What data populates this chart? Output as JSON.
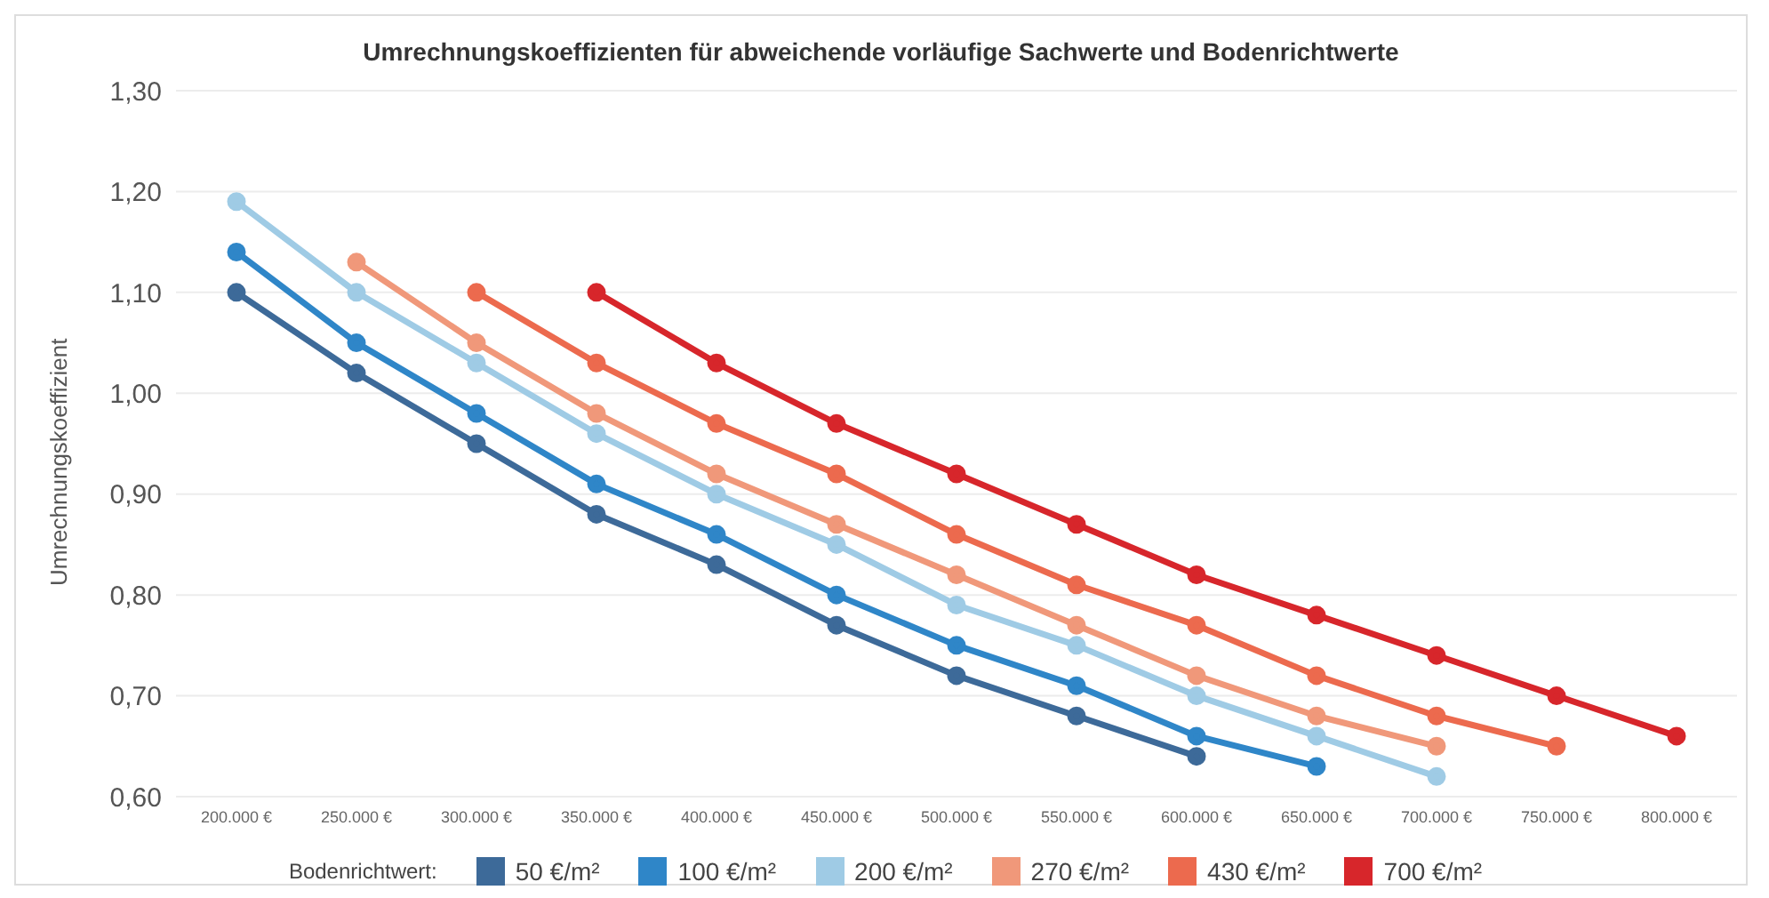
{
  "chart_data": {
    "type": "line",
    "title": "Umrechnungskoeffizienten für abweichende vorläufige Sachwerte und Bodenrichtwerte",
    "ylabel": "Umrechnungskoeffizient",
    "legend_title": "Bodenrichtwert:",
    "categories": [
      "200.000 €",
      "250.000 €",
      "300.000 €",
      "350.000 €",
      "400.000 €",
      "450.000 €",
      "500.000 €",
      "550.000 €",
      "600.000 €",
      "650.000 €",
      "700.000 €",
      "750.000 €",
      "800.000 €"
    ],
    "series": [
      {
        "name": "50 €/m²",
        "color": "#3d6a99",
        "values": [
          1.1,
          1.02,
          0.95,
          0.88,
          0.83,
          0.77,
          0.72,
          0.68,
          0.64,
          null,
          null,
          null,
          null
        ]
      },
      {
        "name": "100 €/m²",
        "color": "#2f86c8",
        "values": [
          1.14,
          1.05,
          0.98,
          0.91,
          0.86,
          0.8,
          0.75,
          0.71,
          0.66,
          0.63,
          null,
          null,
          null
        ]
      },
      {
        "name": "200 €/m²",
        "color": "#9fcbe5",
        "values": [
          1.19,
          1.1,
          1.03,
          0.96,
          0.9,
          0.85,
          0.79,
          0.75,
          0.7,
          0.66,
          0.62,
          null,
          null
        ]
      },
      {
        "name": "270 €/m²",
        "color": "#f0987a",
        "values": [
          null,
          1.13,
          1.05,
          0.98,
          0.92,
          0.87,
          0.82,
          0.77,
          0.72,
          0.68,
          0.65,
          null,
          null
        ]
      },
      {
        "name": "430 €/m²",
        "color": "#ec6a4e",
        "values": [
          null,
          null,
          1.1,
          1.03,
          0.97,
          0.92,
          0.86,
          0.81,
          0.77,
          0.72,
          0.68,
          0.65,
          null
        ]
      },
      {
        "name": "700 €/m²",
        "color": "#d7262b",
        "values": [
          null,
          null,
          null,
          1.1,
          1.03,
          0.97,
          0.92,
          0.87,
          0.82,
          0.78,
          0.74,
          0.7,
          0.66
        ]
      }
    ],
    "ylim": [
      0.6,
      1.3
    ],
    "yticks": [
      {
        "value": 0.6,
        "label": "0,60"
      },
      {
        "value": 0.7,
        "label": "0,70"
      },
      {
        "value": 0.8,
        "label": "0,80"
      },
      {
        "value": 0.9,
        "label": "0,90"
      },
      {
        "value": 1.0,
        "label": "1,00"
      },
      {
        "value": 1.1,
        "label": "1,10"
      },
      {
        "value": 1.2,
        "label": "1,20"
      },
      {
        "value": 1.3,
        "label": "1,30"
      }
    ],
    "grid": "y",
    "legend": "bottom",
    "marker": "circle",
    "line_style": "solid"
  }
}
